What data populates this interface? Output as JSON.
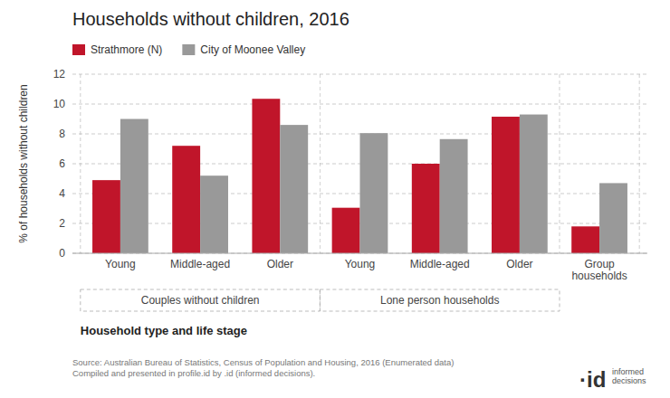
{
  "chart_data": {
    "type": "bar",
    "title": "Households without children, 2016",
    "ylabel": "% of households without children",
    "xlabel": "Household type and life stage",
    "categories": [
      "Young",
      "Middle-aged",
      "Older",
      "Young",
      "Middle-aged",
      "Older",
      "Group\nhouseholds"
    ],
    "category_groups": [
      {
        "label": "Couples without children",
        "size": 3
      },
      {
        "label": "Lone person households",
        "size": 3
      }
    ],
    "series": [
      {
        "name": "Strathmore (N)",
        "color": "#c0152a",
        "values": [
          4.9,
          7.2,
          10.35,
          3.05,
          6.0,
          9.15,
          1.8
        ]
      },
      {
        "name": "City of Moonee Valley",
        "color": "#999999",
        "values": [
          9.0,
          5.2,
          8.6,
          8.05,
          7.65,
          9.3,
          4.7
        ]
      }
    ],
    "ylim": [
      0,
      12
    ],
    "yticks": [
      0,
      2,
      4,
      6,
      8,
      10,
      12
    ],
    "grid": true,
    "legend": "upper left",
    "annotations": [
      "Source: Australian Bureau of Statistics, Census of Population and Housing, 2016 (Enumerated data)\nCompiled and presented in profile.id by .id (informed decisions).",
      "·id",
      "informed\ndecisions"
    ]
  }
}
